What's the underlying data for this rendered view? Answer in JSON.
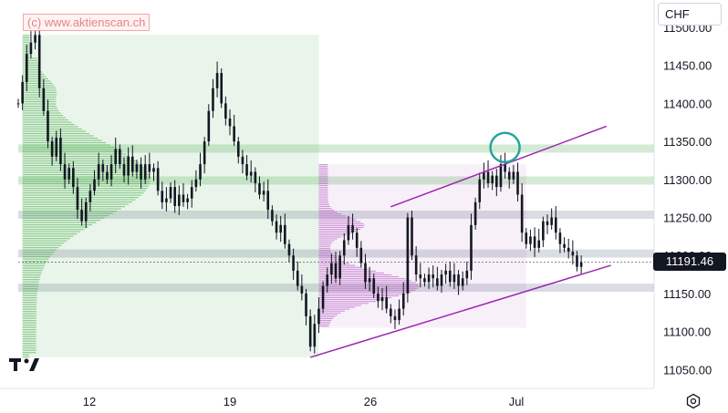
{
  "watermark": "(c) www.aktienscan.ch",
  "currency": "CHF",
  "last_price_label": "11191.46",
  "icons": {
    "logo": "tradingview-logo",
    "settings": "settings-hexagon-icon"
  },
  "colors": {
    "candle": "#131722",
    "volume_profile_1": "#4caf50",
    "volume_profile_2": "#9c27b0",
    "channel": "#9c27b0",
    "circle": "#26a69a",
    "support_resistance_green": "#c8e6c9",
    "support_resistance_grey": "#d1d4dc"
  },
  "chart_data": {
    "type": "candlestick",
    "y_ticks": [
      "11500.00",
      "11450.00",
      "11400.00",
      "11350.00",
      "11300.00",
      "11250.00",
      "11200.00",
      "11150.00",
      "11100.00",
      "11050.00"
    ],
    "y_range": [
      11030,
      11510
    ],
    "x_ticks": [
      "12",
      "19",
      "26",
      "Jul"
    ],
    "last_price": 11191.46,
    "zones": [
      {
        "price": 11340,
        "color": "green"
      },
      {
        "price": 11298,
        "color": "green"
      },
      {
        "price": 11253,
        "color": "grey"
      },
      {
        "price": 11202,
        "color": "grey"
      },
      {
        "price": 11157,
        "color": "grey"
      }
    ],
    "channel_upper": [
      {
        "t": 88,
        "p": 11264
      },
      {
        "t": 139,
        "p": 11370
      }
    ],
    "channel_lower": [
      {
        "t": 69,
        "p": 11066
      },
      {
        "t": 140,
        "p": 11187
      }
    ],
    "highlight_circle": {
      "t": 115,
      "p": 11342
    },
    "volume_profile_1": {
      "t_start": 1,
      "t_end": 71,
      "p_low": 11066,
      "p_high": 11490
    },
    "volume_profile_2": {
      "t_start": 71,
      "t_end": 120,
      "p_low": 11105,
      "p_high": 11320
    },
    "series": [
      {
        "name": "price",
        "points": [
          {
            "t": 0,
            "p": 11400
          },
          {
            "t": 1,
            "p": 11428
          },
          {
            "t": 2,
            "p": 11465
          },
          {
            "t": 3,
            "p": 11480
          },
          {
            "t": 4,
            "p": 11490
          },
          {
            "t": 5,
            "p": 11420
          },
          {
            "t": 6,
            "p": 11390
          },
          {
            "t": 7,
            "p": 11350
          },
          {
            "t": 8,
            "p": 11330
          },
          {
            "t": 9,
            "p": 11355
          },
          {
            "t": 10,
            "p": 11320
          },
          {
            "t": 11,
            "p": 11300
          },
          {
            "t": 12,
            "p": 11315
          },
          {
            "t": 13,
            "p": 11290
          },
          {
            "t": 14,
            "p": 11260
          },
          {
            "t": 15,
            "p": 11245
          },
          {
            "t": 16,
            "p": 11270
          },
          {
            "t": 17,
            "p": 11285
          },
          {
            "t": 18,
            "p": 11300
          },
          {
            "t": 19,
            "p": 11320
          },
          {
            "t": 20,
            "p": 11310
          },
          {
            "t": 21,
            "p": 11300
          },
          {
            "t": 22,
            "p": 11320
          },
          {
            "t": 23,
            "p": 11340
          },
          {
            "t": 24,
            "p": 11320
          },
          {
            "t": 25,
            "p": 11305
          },
          {
            "t": 26,
            "p": 11330
          },
          {
            "t": 27,
            "p": 11310
          },
          {
            "t": 28,
            "p": 11320
          },
          {
            "t": 29,
            "p": 11300
          },
          {
            "t": 30,
            "p": 11320
          },
          {
            "t": 31,
            "p": 11310
          },
          {
            "t": 32,
            "p": 11315
          },
          {
            "t": 33,
            "p": 11285
          },
          {
            "t": 34,
            "p": 11270
          },
          {
            "t": 35,
            "p": 11275
          },
          {
            "t": 36,
            "p": 11290
          },
          {
            "t": 37,
            "p": 11265
          },
          {
            "t": 38,
            "p": 11280
          },
          {
            "t": 39,
            "p": 11270
          },
          {
            "t": 40,
            "p": 11275
          },
          {
            "t": 41,
            "p": 11290
          },
          {
            "t": 42,
            "p": 11300
          },
          {
            "t": 43,
            "p": 11320
          },
          {
            "t": 44,
            "p": 11350
          },
          {
            "t": 45,
            "p": 11390
          },
          {
            "t": 46,
            "p": 11420
          },
          {
            "t": 47,
            "p": 11440
          },
          {
            "t": 48,
            "p": 11400
          },
          {
            "t": 49,
            "p": 11380
          },
          {
            "t": 50,
            "p": 11370
          },
          {
            "t": 51,
            "p": 11350
          },
          {
            "t": 52,
            "p": 11330
          },
          {
            "t": 53,
            "p": 11320
          },
          {
            "t": 54,
            "p": 11305
          },
          {
            "t": 55,
            "p": 11310
          },
          {
            "t": 56,
            "p": 11295
          },
          {
            "t": 57,
            "p": 11280
          },
          {
            "t": 58,
            "p": 11285
          },
          {
            "t": 59,
            "p": 11260
          },
          {
            "t": 60,
            "p": 11245
          },
          {
            "t": 61,
            "p": 11230
          },
          {
            "t": 62,
            "p": 11240
          },
          {
            "t": 63,
            "p": 11215
          },
          {
            "t": 64,
            "p": 11200
          },
          {
            "t": 65,
            "p": 11180
          },
          {
            "t": 66,
            "p": 11160
          },
          {
            "t": 67,
            "p": 11150
          },
          {
            "t": 68,
            "p": 11120
          },
          {
            "t": 69,
            "p": 11080
          },
          {
            "t": 70,
            "p": 11110
          },
          {
            "t": 71,
            "p": 11130
          },
          {
            "t": 72,
            "p": 11160
          },
          {
            "t": 73,
            "p": 11175
          },
          {
            "t": 74,
            "p": 11190
          },
          {
            "t": 75,
            "p": 11170
          },
          {
            "t": 76,
            "p": 11200
          },
          {
            "t": 77,
            "p": 11220
          },
          {
            "t": 78,
            "p": 11240
          },
          {
            "t": 79,
            "p": 11230
          },
          {
            "t": 80,
            "p": 11210
          },
          {
            "t": 81,
            "p": 11190
          },
          {
            "t": 82,
            "p": 11165
          },
          {
            "t": 83,
            "p": 11170
          },
          {
            "t": 84,
            "p": 11150
          },
          {
            "t": 85,
            "p": 11140
          },
          {
            "t": 86,
            "p": 11145
          },
          {
            "t": 87,
            "p": 11130
          },
          {
            "t": 88,
            "p": 11120
          },
          {
            "t": 89,
            "p": 11115
          },
          {
            "t": 90,
            "p": 11130
          },
          {
            "t": 91,
            "p": 11150
          },
          {
            "t": 92,
            "p": 11250
          },
          {
            "t": 93,
            "p": 11200
          },
          {
            "t": 94,
            "p": 11175
          },
          {
            "t": 95,
            "p": 11170
          },
          {
            "t": 96,
            "p": 11165
          },
          {
            "t": 97,
            "p": 11175
          },
          {
            "t": 98,
            "p": 11170
          },
          {
            "t": 99,
            "p": 11160
          },
          {
            "t": 100,
            "p": 11175
          },
          {
            "t": 101,
            "p": 11180
          },
          {
            "t": 102,
            "p": 11165
          },
          {
            "t": 103,
            "p": 11175
          },
          {
            "t": 104,
            "p": 11160
          },
          {
            "t": 105,
            "p": 11170
          },
          {
            "t": 106,
            "p": 11180
          },
          {
            "t": 107,
            "p": 11240
          },
          {
            "t": 108,
            "p": 11270
          },
          {
            "t": 109,
            "p": 11300
          },
          {
            "t": 110,
            "p": 11310
          },
          {
            "t": 111,
            "p": 11295
          },
          {
            "t": 112,
            "p": 11305
          },
          {
            "t": 113,
            "p": 11290
          },
          {
            "t": 114,
            "p": 11320
          },
          {
            "t": 115,
            "p": 11310
          },
          {
            "t": 116,
            "p": 11300
          },
          {
            "t": 117,
            "p": 11310
          },
          {
            "t": 118,
            "p": 11280
          },
          {
            "t": 119,
            "p": 11230
          },
          {
            "t": 120,
            "p": 11215
          },
          {
            "t": 121,
            "p": 11225
          },
          {
            "t": 122,
            "p": 11210
          },
          {
            "t": 123,
            "p": 11220
          },
          {
            "t": 124,
            "p": 11245
          },
          {
            "t": 125,
            "p": 11240
          },
          {
            "t": 126,
            "p": 11250
          },
          {
            "t": 127,
            "p": 11230
          },
          {
            "t": 128,
            "p": 11215
          },
          {
            "t": 129,
            "p": 11210
          },
          {
            "t": 130,
            "p": 11205
          },
          {
            "t": 131,
            "p": 11200
          },
          {
            "t": 132,
            "p": 11185
          },
          {
            "t": 133,
            "p": 11191
          }
        ]
      }
    ]
  }
}
